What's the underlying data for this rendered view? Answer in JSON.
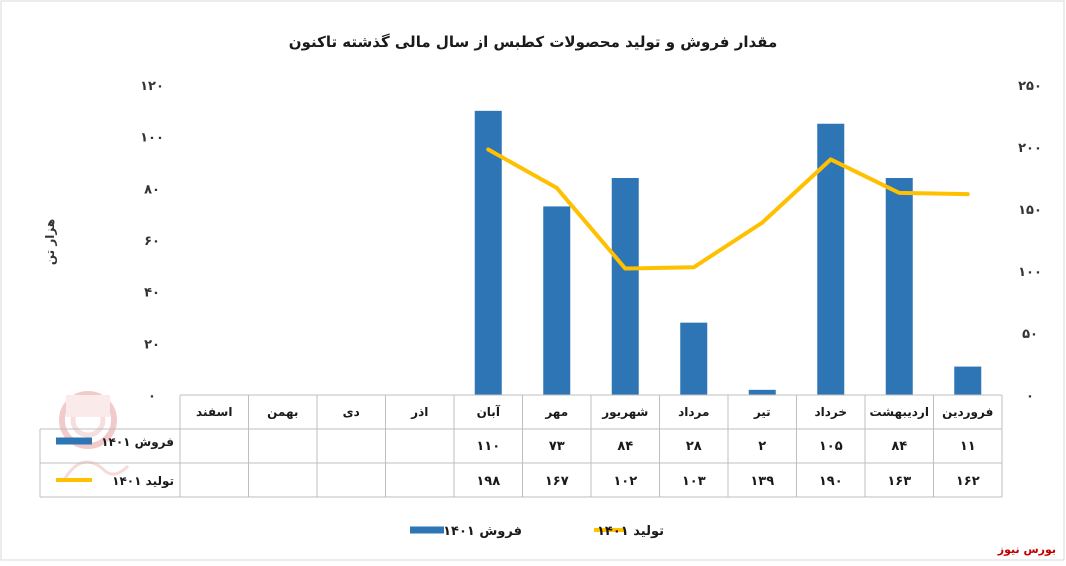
{
  "chart_data": {
    "type": "bar",
    "title": "مقدار فروش و تولید محصولات کطبس از سال مالی گذشته تاکنون",
    "ylabel": "هزار تن",
    "categories": [
      "فروردین",
      "اردیبهشت",
      "خرداد",
      "تیر",
      "مرداد",
      "شهریور",
      "مهر",
      "آبان",
      "اذر",
      "دی",
      "بهمن",
      "اسفند"
    ],
    "left_axis": {
      "ylim": [
        0,
        120
      ],
      "ticks": [
        "۰",
        "۲۰",
        "۴۰",
        "۶۰",
        "۸۰",
        "۱۰۰",
        "۱۲۰"
      ]
    },
    "right_axis": {
      "ylim": [
        0,
        250
      ],
      "ticks": [
        "۰",
        "۵۰",
        "۱۰۰",
        "۱۵۰",
        "۲۰۰",
        "۲۵۰"
      ]
    },
    "series": [
      {
        "name": "فروش ۱۴۰۱",
        "type": "bar",
        "axis": "left",
        "color": "#2E75B6",
        "values": [
          11,
          84,
          105,
          2,
          28,
          84,
          73,
          110,
          null,
          null,
          null,
          null
        ],
        "labels": [
          "۱۱",
          "۸۴",
          "۱۰۵",
          "۲",
          "۲۸",
          "۸۴",
          "۷۳",
          "۱۱۰",
          "",
          "",
          "",
          ""
        ]
      },
      {
        "name": "تولید ۱۴۰۱",
        "type": "line",
        "axis": "right",
        "color": "#FFC000",
        "values": [
          162,
          163,
          190,
          139,
          103,
          102,
          167,
          198,
          null,
          null,
          null,
          null
        ],
        "labels": [
          "۱۶۲",
          "۱۶۳",
          "۱۹۰",
          "۱۳۹",
          "۱۰۳",
          "۱۰۲",
          "۱۶۷",
          "۱۹۸",
          "",
          "",
          "",
          ""
        ]
      }
    ],
    "data_table": true,
    "legend": "bottom",
    "grid": false
  },
  "source": "بورس نیوز"
}
